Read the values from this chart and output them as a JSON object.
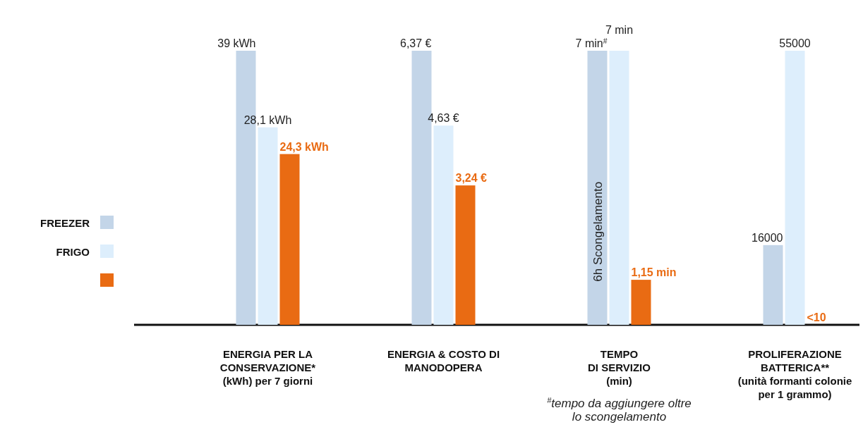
{
  "chart_data": [
    {
      "type": "bar",
      "xlabel": "ENERGIA PER LA\nCONSERVAZIONE*\n(kWh) per 7 giorni",
      "categories": [
        null
      ],
      "legend": "left",
      "series": [
        {
          "name": "FREEZER",
          "color": "#c3d5e8",
          "values": [
            39
          ],
          "value_labels": [
            "39 kWh"
          ]
        },
        {
          "name": "FRIGO",
          "color": "#ddeefc",
          "values": [
            28.1
          ],
          "value_labels": [
            "28,1 kWh"
          ]
        },
        {
          "color": "#e96b13",
          "values": [
            24.3
          ],
          "value_labels": [
            "24,3 kWh"
          ]
        }
      ]
    },
    {
      "type": "bar",
      "xlabel": "ENERGIA & COSTO DI\nMANODOPERA",
      "categories": [
        null
      ],
      "series": [
        {
          "color": "#c3d5e8",
          "values": [
            6.37
          ],
          "value_labels": [
            "6,37 €"
          ]
        },
        {
          "color": "#ddeefc",
          "values": [
            4.63
          ],
          "value_labels": [
            "4,63 €"
          ]
        },
        {
          "color": "#e96b13",
          "values": [
            3.24
          ],
          "value_labels": [
            "3,24 €"
          ]
        }
      ]
    },
    {
      "type": "bar",
      "xlabel": "TEMPO\nDI SERVIZIO\n(min)",
      "categories": [
        null
      ],
      "series": [
        {
          "color": "#c3d5e8",
          "values": [
            7
          ],
          "value_labels": [
            "7 min$^{#}$"
          ]
        },
        {
          "color": "#ddeefc",
          "values": [
            7
          ],
          "value_labels": [
            "7 min"
          ]
        },
        {
          "color": "#e96b13",
          "values": [
            1.15
          ],
          "value_labels": [
            "1,15 min"
          ]
        }
      ],
      "annotations": [
        "6h Scongelamento",
        "$^{#}$tempo da aggiungere oltre\nlo scongelamento"
      ]
    },
    {
      "type": "bar",
      "xlabel": "PROLIFERAZIONE\nBATTERICA**\n(unità formanti colonie\nper 1 grammo)",
      "categories": [
        null
      ],
      "series": [
        {
          "color": "#c3d5e8",
          "values": [
            16000
          ],
          "value_labels": [
            "16000"
          ]
        },
        {
          "color": "#ddeefc",
          "values": [
            55000
          ],
          "value_labels": [
            "55000"
          ]
        },
        {
          "color": "#e96b13",
          "values": [
            10
          ],
          "value_labels": [
            "<10"
          ]
        }
      ]
    }
  ]
}
